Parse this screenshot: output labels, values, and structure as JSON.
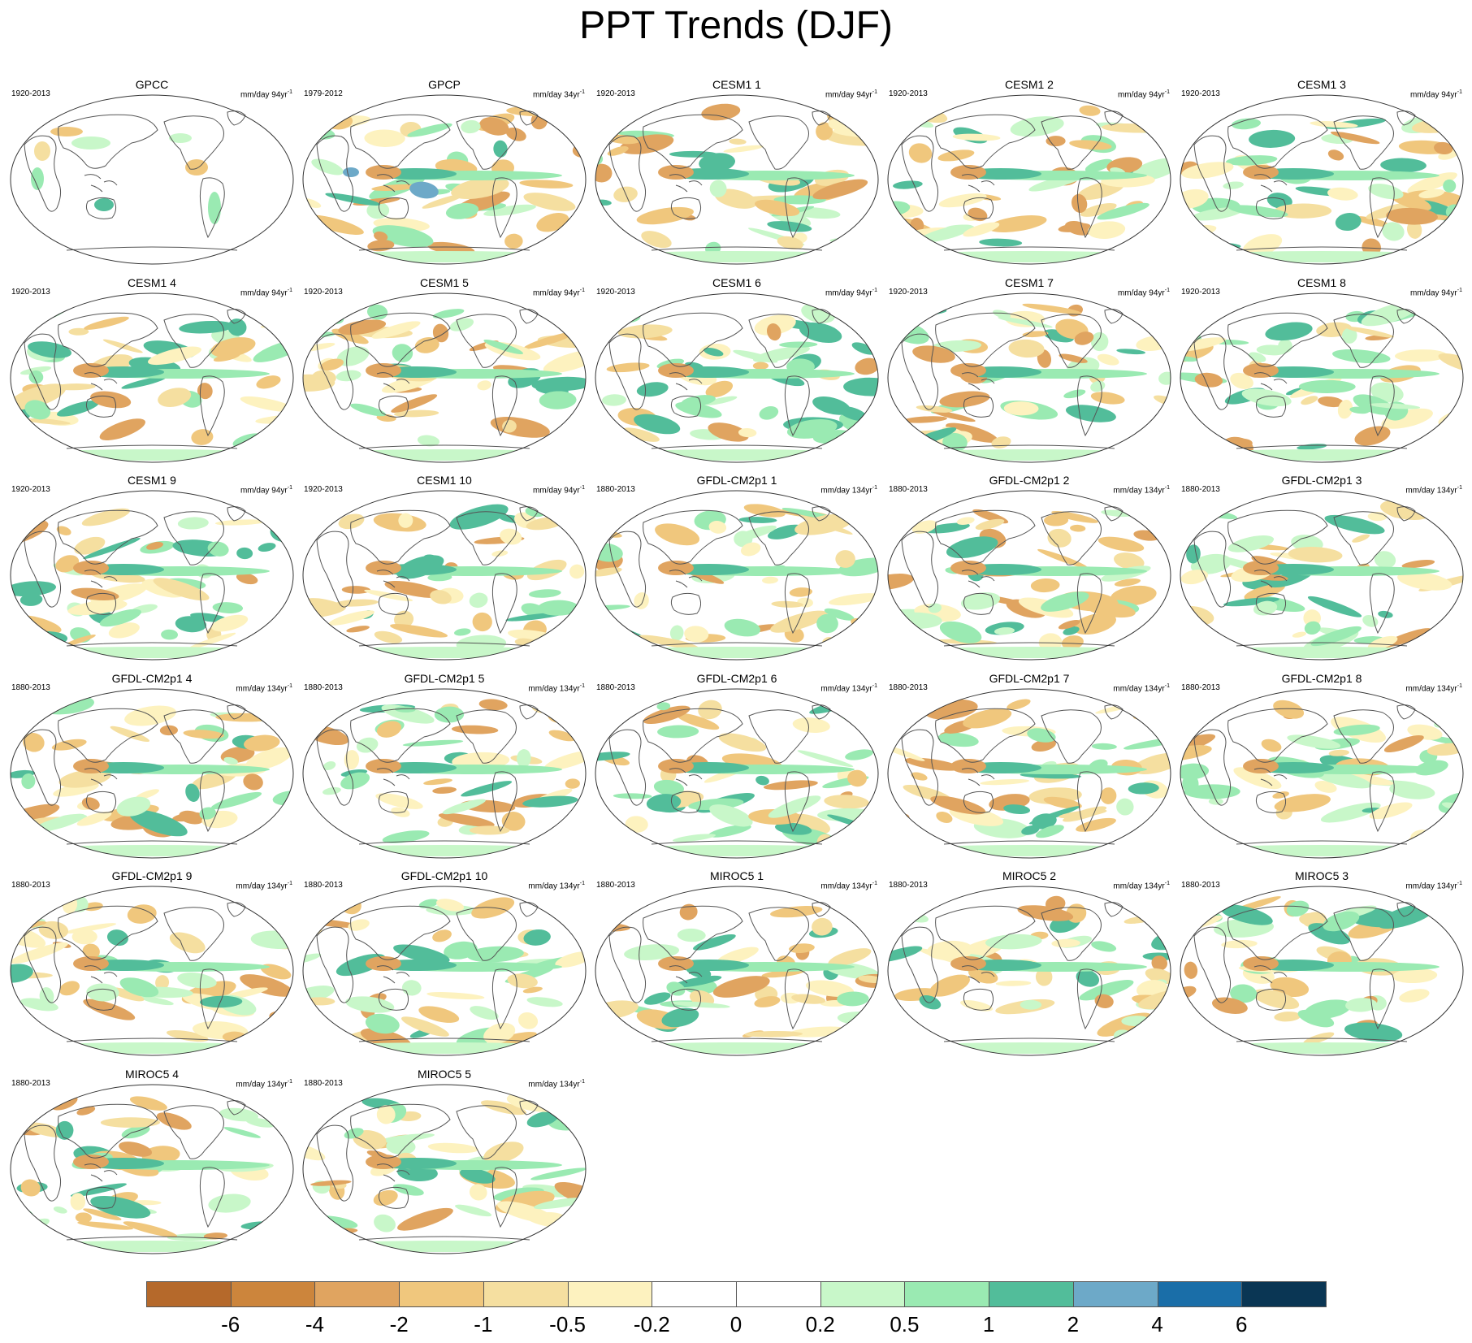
{
  "title": "PPT Trends (DJF)",
  "panels": [
    {
      "name": "GPCC",
      "period": "1920-2013",
      "units": "mm/day 94yr",
      "exponent": "-1"
    },
    {
      "name": "GPCP",
      "period": "1979-2012",
      "units": "mm/day 34yr",
      "exponent": "-1"
    },
    {
      "name": "CESM1 1",
      "period": "1920-2013",
      "units": "mm/day 94yr",
      "exponent": "-1"
    },
    {
      "name": "CESM1 2",
      "period": "1920-2013",
      "units": "mm/day 94yr",
      "exponent": "-1"
    },
    {
      "name": "CESM1 3",
      "period": "1920-2013",
      "units": "mm/day 94yr",
      "exponent": "-1"
    },
    {
      "name": "CESM1 4",
      "period": "1920-2013",
      "units": "mm/day 94yr",
      "exponent": "-1"
    },
    {
      "name": "CESM1 5",
      "period": "1920-2013",
      "units": "mm/day 94yr",
      "exponent": "-1"
    },
    {
      "name": "CESM1 6",
      "period": "1920-2013",
      "units": "mm/day 94yr",
      "exponent": "-1"
    },
    {
      "name": "CESM1 7",
      "period": "1920-2013",
      "units": "mm/day 94yr",
      "exponent": "-1"
    },
    {
      "name": "CESM1 8",
      "period": "1920-2013",
      "units": "mm/day 94yr",
      "exponent": "-1"
    },
    {
      "name": "CESM1 9",
      "period": "1920-2013",
      "units": "mm/day 94yr",
      "exponent": "-1"
    },
    {
      "name": "CESM1 10",
      "period": "1920-2013",
      "units": "mm/day 94yr",
      "exponent": "-1"
    },
    {
      "name": "GFDL-CM2p1 1",
      "period": "1880-2013",
      "units": "mm/day 134yr",
      "exponent": "-1"
    },
    {
      "name": "GFDL-CM2p1 2",
      "period": "1880-2013",
      "units": "mm/day 134yr",
      "exponent": "-1"
    },
    {
      "name": "GFDL-CM2p1 3",
      "period": "1880-2013",
      "units": "mm/day 134yr",
      "exponent": "-1"
    },
    {
      "name": "GFDL-CM2p1 4",
      "period": "1880-2013",
      "units": "mm/day 134yr",
      "exponent": "-1"
    },
    {
      "name": "GFDL-CM2p1 5",
      "period": "1880-2013",
      "units": "mm/day 134yr",
      "exponent": "-1"
    },
    {
      "name": "GFDL-CM2p1 6",
      "period": "1880-2013",
      "units": "mm/day 134yr",
      "exponent": "-1"
    },
    {
      "name": "GFDL-CM2p1 7",
      "period": "1880-2013",
      "units": "mm/day 134yr",
      "exponent": "-1"
    },
    {
      "name": "GFDL-CM2p1 8",
      "period": "1880-2013",
      "units": "mm/day 134yr",
      "exponent": "-1"
    },
    {
      "name": "GFDL-CM2p1 9",
      "period": "1880-2013",
      "units": "mm/day 134yr",
      "exponent": "-1"
    },
    {
      "name": "GFDL-CM2p1 10",
      "period": "1880-2013",
      "units": "mm/day 134yr",
      "exponent": "-1"
    },
    {
      "name": "MIROC5 1",
      "period": "1880-2013",
      "units": "mm/day 134yr",
      "exponent": "-1"
    },
    {
      "name": "MIROC5 2",
      "period": "1880-2013",
      "units": "mm/day 134yr",
      "exponent": "-1"
    },
    {
      "name": "MIROC5 3",
      "period": "1880-2013",
      "units": "mm/day 134yr",
      "exponent": "-1"
    },
    {
      "name": "MIROC5 4",
      "period": "1880-2013",
      "units": "mm/day 134yr",
      "exponent": "-1"
    },
    {
      "name": "MIROC5 5",
      "period": "1880-2013",
      "units": "mm/day 134yr",
      "exponent": "-1"
    }
  ],
  "colorbar": {
    "colors": [
      "#b5692b",
      "#cc853c",
      "#e0a460",
      "#f0c77d",
      "#f5dfa0",
      "#fdf2bf",
      "#ffffff",
      "#ffffff",
      "#c8f7c9",
      "#9aeab2",
      "#52bd9a",
      "#6da9c8",
      "#1a6ea8",
      "#0a3654"
    ],
    "ticks": [
      "-6",
      "-4",
      "-2",
      "-1",
      "-0.5",
      "-0.2",
      "0",
      "0.2",
      "0.5",
      "1",
      "2",
      "4",
      "6"
    ]
  }
}
